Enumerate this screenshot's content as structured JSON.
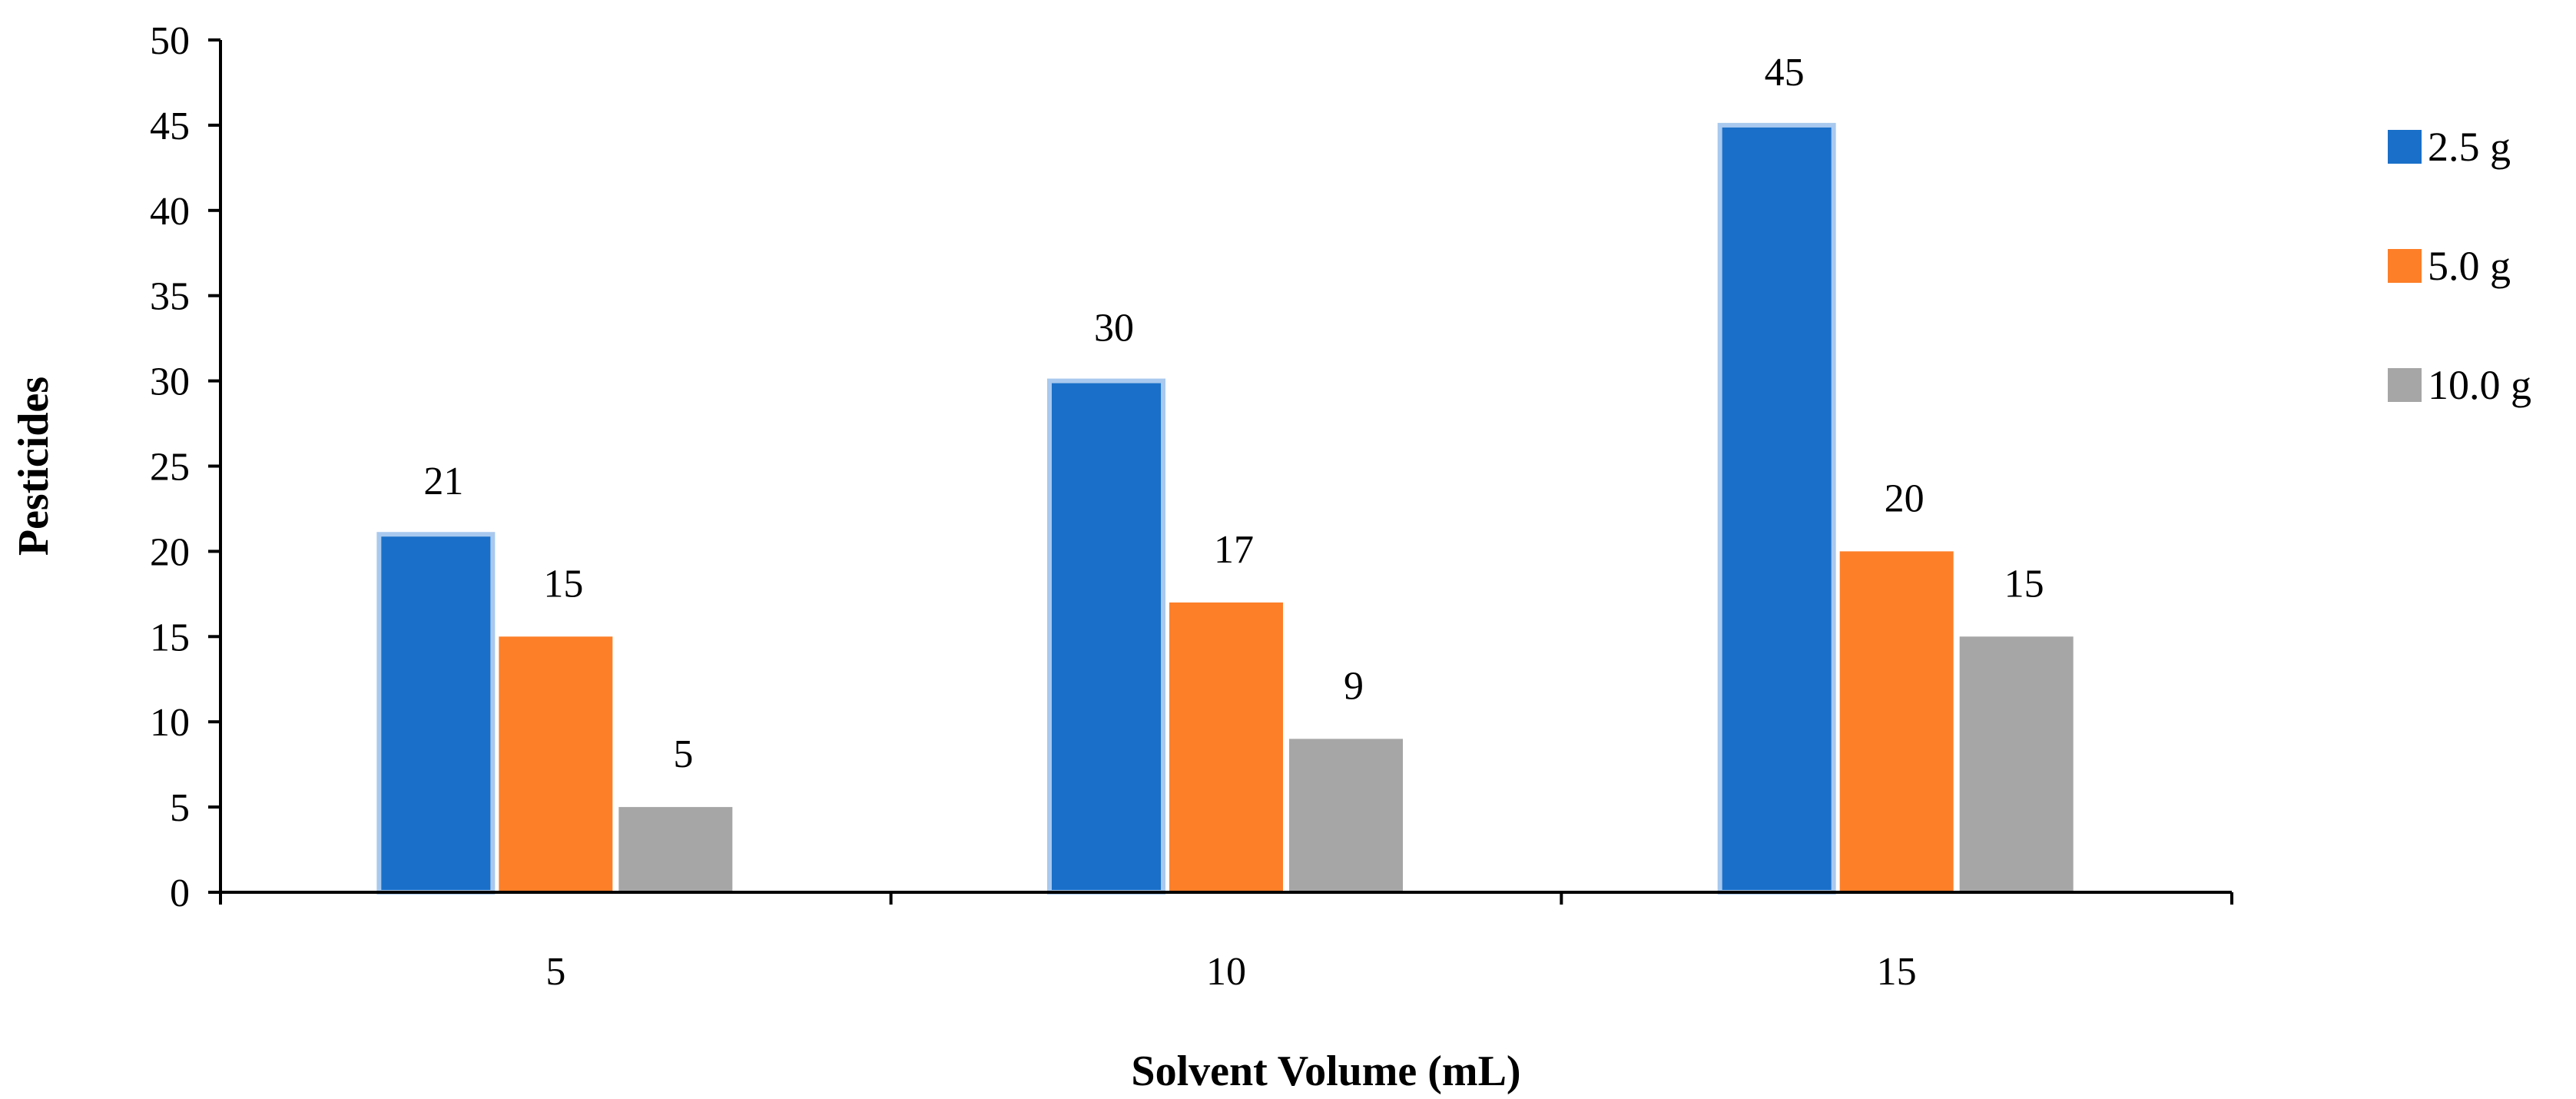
{
  "chart_data": {
    "type": "bar",
    "title": "",
    "xlabel": "Solvent Volume (mL)",
    "ylabel": "Pesticides",
    "categories": [
      "5",
      "10",
      "15"
    ],
    "series": [
      {
        "name": "2.5 g",
        "values": [
          21,
          30,
          45
        ],
        "color": "#1a70c8"
      },
      {
        "name": "5.0 g",
        "values": [
          15,
          17,
          20
        ],
        "color": "#fd7f28"
      },
      {
        "name": "10.0 g",
        "values": [
          5,
          9,
          15
        ],
        "color": "#a6a6a6"
      }
    ],
    "ylim": [
      0,
      50
    ],
    "yticks": [
      "0",
      "5",
      "10",
      "15",
      "20",
      "25",
      "30",
      "35",
      "40",
      "45",
      "50"
    ],
    "data_labels": true,
    "grid": false,
    "legend_position": "right"
  }
}
